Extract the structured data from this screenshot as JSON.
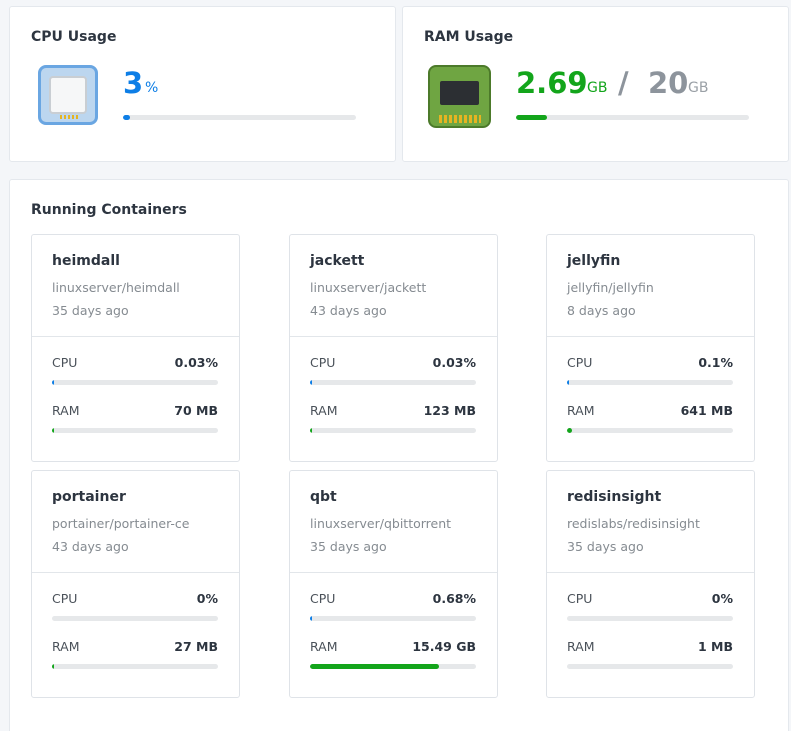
{
  "cpu": {
    "title": "CPU Usage",
    "value": "3",
    "unit": "%",
    "percent": 3
  },
  "ram": {
    "title": "RAM Usage",
    "used": "2.69",
    "used_unit": "GB",
    "separator": "/",
    "total": "20",
    "total_unit": "GB",
    "percent": 13.45
  },
  "containers_title": "Running Containers",
  "containers": [
    {
      "name": "heimdall",
      "image": "linuxserver/heimdall",
      "age": "35 days ago",
      "cpu_label": "CPU",
      "cpu": "0.03%",
      "cpu_pct": 0.5,
      "ram_label": "RAM",
      "ram": "70 MB",
      "ram_pct": 0.8
    },
    {
      "name": "jackett",
      "image": "linuxserver/jackett",
      "age": "43 days ago",
      "cpu_label": "CPU",
      "cpu": "0.03%",
      "cpu_pct": 0.5,
      "ram_label": "RAM",
      "ram": "123 MB",
      "ram_pct": 1
    },
    {
      "name": "jellyfin",
      "image": "jellyfin/jellyfin",
      "age": "8 days ago",
      "cpu_label": "CPU",
      "cpu": "0.1%",
      "cpu_pct": 0.8,
      "ram_label": "RAM",
      "ram": "641 MB",
      "ram_pct": 3.2
    },
    {
      "name": "portainer",
      "image": "portainer/portainer-ce",
      "age": "43 days ago",
      "cpu_label": "CPU",
      "cpu": "0%",
      "cpu_pct": 0,
      "ram_label": "RAM",
      "ram": "27 MB",
      "ram_pct": 0.6
    },
    {
      "name": "qbt",
      "image": "linuxserver/qbittorrent",
      "age": "35 days ago",
      "cpu_label": "CPU",
      "cpu": "0.68%",
      "cpu_pct": 0.9,
      "ram_label": "RAM",
      "ram": "15.49 GB",
      "ram_pct": 77.5
    },
    {
      "name": "redisinsight",
      "image": "redislabs/redisinsight",
      "age": "35 days ago",
      "cpu_label": "CPU",
      "cpu": "0%",
      "cpu_pct": 0,
      "ram_label": "RAM",
      "ram": "1 MB",
      "ram_pct": 0
    }
  ],
  "icons": {
    "cpu": "cpu-chip-icon",
    "ram": "ram-module-icon"
  },
  "colors": {
    "cpu_accent": "#0d7ee6",
    "ram_accent": "#13a51b",
    "muted": "#8d949c"
  }
}
